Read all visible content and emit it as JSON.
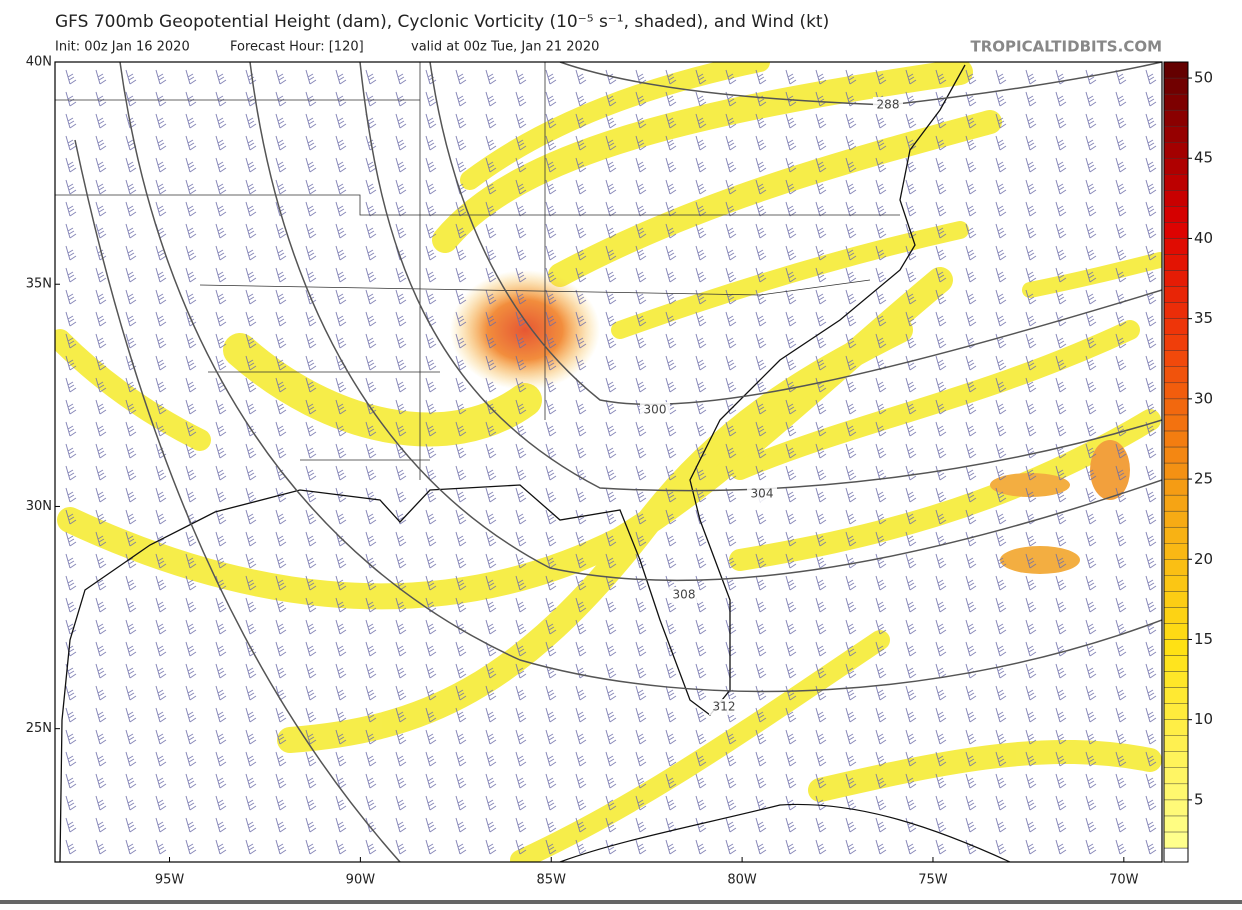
{
  "header": {
    "title": "GFS 700mb Geopotential Height (dam), Cyclonic Vorticity (10⁻⁵ s⁻¹, shaded), and Wind (kt)",
    "init": "Init: 00z Jan 16 2020",
    "forecast_hour": "Forecast Hour: [120]",
    "valid": "valid at 00z Tue, Jan 21 2020",
    "credit": "TROPICALTIDBITS.COM"
  },
  "map": {
    "lon_range": [
      -98,
      -69
    ],
    "lat_range": [
      22,
      40
    ],
    "lon_ticks": [
      {
        "value": -95,
        "label": "95W"
      },
      {
        "value": -90,
        "label": "90W"
      },
      {
        "value": -85,
        "label": "85W"
      },
      {
        "value": -80,
        "label": "80W"
      },
      {
        "value": -75,
        "label": "75W"
      },
      {
        "value": -70,
        "label": "70W"
      }
    ],
    "lat_ticks": [
      {
        "value": 40,
        "label": "40N"
      },
      {
        "value": 35,
        "label": "35N"
      },
      {
        "value": 30,
        "label": "30N"
      },
      {
        "value": 25,
        "label": "25N"
      }
    ],
    "contour_labels": [
      288,
      300,
      304,
      308,
      312
    ]
  },
  "colorbar": {
    "range": [
      2,
      51
    ],
    "ticks": [
      5,
      10,
      15,
      20,
      25,
      30,
      35,
      40,
      45,
      50
    ]
  }
}
